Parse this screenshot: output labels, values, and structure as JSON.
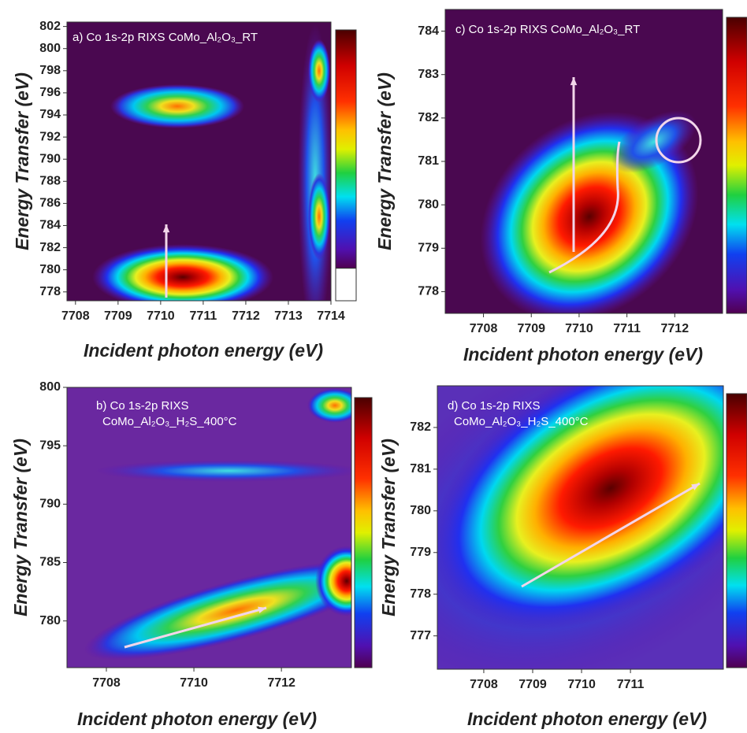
{
  "chart_data": [
    {
      "type": "heatmap",
      "title": [
        "a) Co 1s-2p RIXS CoMo_Al₂O₃_RT"
      ],
      "x_label": "Incident photon energy (eV)",
      "y_label": "Energy Transfer (eV)",
      "xlim": [
        7707.8,
        7714
      ],
      "xticks": [
        7708,
        7709,
        7710,
        7711,
        7712,
        7713,
        7714
      ],
      "ylim": [
        777.2,
        802.4
      ],
      "yticks": [
        778,
        780,
        782,
        784,
        786,
        788,
        790,
        792,
        794,
        796,
        798,
        800,
        802
      ]
    },
    {
      "type": "heatmap",
      "title": [
        "c) Co 1s-2p RIXS CoMo_Al₂O₃_RT"
      ],
      "x_label": "Incident photon energy (eV)",
      "y_label": "Energy Transfer (eV)",
      "xlim": [
        7707.2,
        7713
      ],
      "xticks": [
        7708,
        7709,
        7710,
        7711,
        7712
      ],
      "ylim": [
        777.5,
        784.5
      ],
      "yticks": [
        778,
        779,
        780,
        781,
        782,
        783,
        784
      ]
    },
    {
      "type": "heatmap",
      "title": [
        "b) Co 1s-2p RIXS",
        "CoMo_Al₂O₃_H₂S_400°C"
      ],
      "x_label": "Incident photon energy (eV)",
      "y_label": "Energy Transfer (eV)",
      "xlim": [
        7707.1,
        7713.6
      ],
      "xticks": [
        7708,
        7710,
        7712
      ],
      "ylim": [
        776,
        800
      ],
      "yticks": [
        780,
        785,
        790,
        795,
        800
      ]
    },
    {
      "type": "heatmap",
      "title": [
        "d) Co 1s-2p RIXS",
        "CoMo_Al₂O₃_H₂S_400°C"
      ],
      "x_label": "Incident photon energy (eV)",
      "y_label": "Energy Transfer (eV)",
      "xlim": [
        7707.05,
        7712.9
      ],
      "xticks": [
        7708,
        7709,
        7710,
        7711
      ],
      "ylim": [
        776.2,
        783
      ],
      "yticks": [
        777,
        778,
        779,
        780,
        781,
        782
      ]
    }
  ]
}
